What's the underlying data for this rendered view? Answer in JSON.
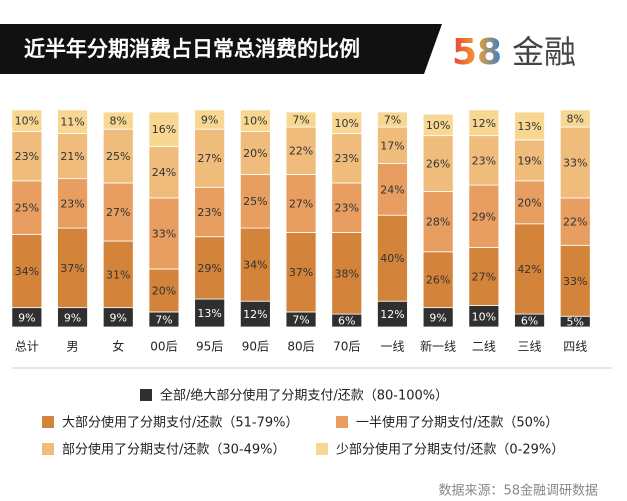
{
  "chart_data": {
    "type": "stacked_bar",
    "title": "近半年分期消费占日常总消费的比例",
    "logo": {
      "number": "58",
      "name": "金融"
    },
    "source": "数据来源：58金融调研数据",
    "categories": [
      "总计",
      "男",
      "女",
      "00后",
      "95后",
      "90后",
      "80后",
      "70后",
      "一线",
      "新一线",
      "二线",
      "三线",
      "四线"
    ],
    "ylim": [
      0,
      100
    ],
    "series": [
      {
        "name": "全部/绝大部分使用了分期支付/还款（80-100%）",
        "color": "#2f2f2f",
        "values": [
          9,
          9,
          9,
          7,
          13,
          12,
          7,
          6,
          12,
          9,
          10,
          6,
          5
        ],
        "value_labels": [
          "9%",
          "9%",
          "9%",
          "7%",
          "13%",
          "12%",
          "7%",
          "6%",
          "12%",
          "9%",
          "10%",
          "6%",
          "5%"
        ]
      },
      {
        "name": "大部分使用了分期支付/还款（51-79%）",
        "color": "#d4833a",
        "values": [
          34,
          37,
          31,
          20,
          29,
          34,
          37,
          38,
          40,
          26,
          27,
          42,
          33
        ],
        "value_labels": [
          "34%",
          "37%",
          "31%",
          "20%",
          "29%",
          "34%",
          "37%",
          "38%",
          "40%",
          "26%",
          "27%",
          "42%",
          "33%"
        ]
      },
      {
        "name": "一半使用了分期支付/还款（50%）",
        "color": "#e89e60",
        "values": [
          25,
          23,
          27,
          33,
          23,
          25,
          27,
          23,
          24,
          28,
          29,
          20,
          22
        ],
        "value_labels": [
          "25%",
          "23%",
          "27%",
          "33%",
          "23%",
          "25%",
          "27%",
          "23%",
          "24%",
          "28%",
          "29%",
          "20%",
          "22%"
        ]
      },
      {
        "name": "部分使用了分期支付/还款（30-49%）",
        "color": "#f0bc7c",
        "values": [
          23,
          21,
          25,
          24,
          27,
          20,
          22,
          23,
          17,
          26,
          23,
          19,
          33
        ],
        "value_labels": [
          "23%",
          "21%",
          "25%",
          "24%",
          "27%",
          "20%",
          "22%",
          "23%",
          "17%",
          "26%",
          "23%",
          "19%",
          "33%"
        ]
      },
      {
        "name": "少部分使用了分期支付/还款（0-29%）",
        "color": "#f8d793",
        "values": [
          10,
          11,
          8,
          16,
          9,
          10,
          7,
          10,
          7,
          10,
          12,
          13,
          8
        ],
        "value_labels": [
          "10%",
          "11%",
          "8%",
          "16%",
          "9%",
          "10%",
          "7%",
          "10%",
          "7%",
          "10%",
          "12%",
          "13%",
          "8%"
        ]
      }
    ]
  }
}
